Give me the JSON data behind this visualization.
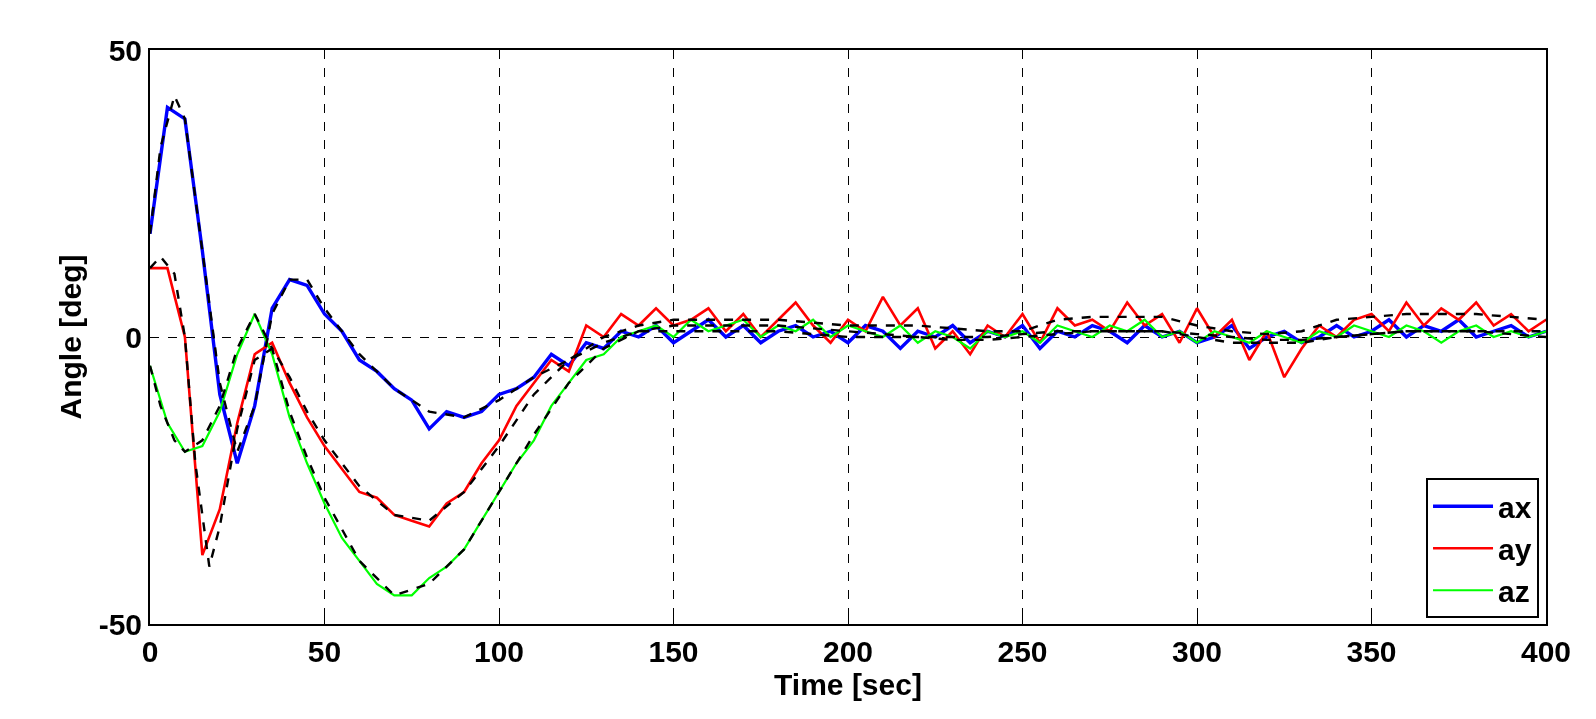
{
  "chart_data": {
    "type": "line",
    "xlabel": "Time [sec]",
    "ylabel": "Angle [deg]",
    "xlim": [
      0,
      400
    ],
    "xticks": [
      0,
      50,
      100,
      150,
      200,
      250,
      300,
      350,
      400
    ],
    "ylim": [
      -50,
      50
    ],
    "yticks": [
      -50,
      0,
      50
    ],
    "grid": true,
    "legend": "bottom right",
    "x": [
      0,
      5,
      10,
      15,
      20,
      25,
      30,
      35,
      40,
      45,
      50,
      55,
      60,
      65,
      70,
      75,
      80,
      85,
      90,
      95,
      100,
      105,
      110,
      115,
      120,
      125,
      130,
      135,
      140,
      145,
      150,
      155,
      160,
      165,
      170,
      175,
      180,
      185,
      190,
      195,
      200,
      205,
      210,
      215,
      220,
      225,
      230,
      235,
      240,
      245,
      250,
      255,
      260,
      265,
      270,
      275,
      280,
      285,
      290,
      295,
      300,
      305,
      310,
      315,
      320,
      325,
      330,
      335,
      340,
      345,
      350,
      355,
      360,
      365,
      370,
      375,
      380,
      385,
      390,
      395,
      400
    ],
    "series": [
      {
        "name": "ax",
        "color": "#0000ff",
        "values": [
          18,
          40,
          38,
          15,
          -10,
          -22,
          -12,
          5,
          10,
          9,
          4,
          1,
          -4,
          -6,
          -9,
          -11,
          -16,
          -13,
          -14,
          -13,
          -10,
          -9,
          -7,
          -3,
          -5,
          -1,
          -2,
          1,
          0,
          2,
          -1,
          1,
          3,
          0,
          2,
          -1,
          1,
          2,
          0,
          1,
          -1,
          2,
          1,
          -2,
          1,
          0,
          2,
          -1,
          1,
          0,
          2,
          -2,
          1,
          0,
          2,
          1,
          -1,
          2,
          0,
          1,
          -1,
          0,
          2,
          -2,
          0,
          1,
          -1,
          0,
          2,
          0,
          1,
          3,
          0,
          2,
          1,
          3,
          0,
          1,
          2,
          0,
          1
        ]
      },
      {
        "name": "ay",
        "color": "#ff0000",
        "values": [
          12,
          12,
          0,
          -38,
          -30,
          -15,
          -3,
          -1,
          -8,
          -14,
          -19,
          -23,
          -27,
          -28,
          -31,
          -32,
          -33,
          -29,
          -27,
          -22,
          -18,
          -12,
          -8,
          -4,
          -6,
          2,
          0,
          4,
          2,
          5,
          2,
          3,
          5,
          1,
          4,
          0,
          3,
          6,
          2,
          -1,
          3,
          1,
          7,
          2,
          5,
          -2,
          1,
          -3,
          2,
          0,
          4,
          -1,
          5,
          2,
          3,
          1,
          6,
          2,
          4,
          -1,
          5,
          0,
          3,
          -4,
          1,
          -7,
          -2,
          2,
          0,
          3,
          4,
          1,
          6,
          2,
          5,
          3,
          6,
          2,
          4,
          1,
          3
        ]
      },
      {
        "name": "az",
        "color": "#00ff00",
        "values": [
          -5,
          -15,
          -20,
          -19,
          -13,
          -3,
          4,
          -3,
          -14,
          -22,
          -29,
          -35,
          -39,
          -43,
          -45,
          -45,
          -42,
          -40,
          -37,
          -32,
          -27,
          -22,
          -18,
          -12,
          -8,
          -4,
          -3,
          0,
          1,
          2,
          0,
          3,
          1,
          2,
          3,
          0,
          2,
          1,
          3,
          0,
          2,
          1,
          0,
          2,
          -1,
          1,
          0,
          -2,
          1,
          0,
          1,
          -1,
          2,
          1,
          0,
          2,
          1,
          3,
          0,
          1,
          -1,
          1,
          0,
          -1,
          1,
          0,
          -1,
          1,
          0,
          2,
          1,
          0,
          2,
          1,
          -1,
          1,
          2,
          0,
          1,
          0,
          1
        ]
      },
      {
        "color": "#000000",
        "line_style": "dashed",
        "x": [
          0,
          3,
          7,
          10,
          15,
          20,
          25,
          30,
          35,
          40,
          45,
          50,
          60,
          70,
          80,
          90,
          100,
          110,
          120,
          130,
          140,
          150,
          160,
          170,
          180,
          190,
          200,
          210,
          220,
          230,
          240,
          250,
          260,
          270,
          280,
          290,
          300,
          310,
          320,
          330,
          340,
          350,
          360,
          370,
          380,
          390,
          400
        ],
        "values": [
          18,
          33,
          42,
          38,
          15,
          -8,
          -20,
          -12,
          4,
          10,
          10,
          5,
          -3,
          -9,
          -13,
          -14,
          -11,
          -7,
          -4,
          -1,
          1,
          1,
          1,
          1,
          1,
          0.5,
          0,
          0,
          0,
          0,
          0,
          0.5,
          1,
          1,
          1,
          1,
          0,
          -1,
          -1,
          -1,
          0,
          0.5,
          1,
          1,
          1,
          0.5,
          0
        ]
      },
      {
        "color": "#000000",
        "line_style": "dashed",
        "x": [
          0,
          3,
          7,
          10,
          13,
          17,
          20,
          25,
          30,
          35,
          40,
          45,
          50,
          60,
          70,
          80,
          90,
          100,
          110,
          120,
          130,
          140,
          150,
          160,
          170,
          180,
          190,
          200,
          210,
          220,
          230,
          240,
          250,
          260,
          270,
          280,
          290,
          300,
          310,
          320,
          330,
          340,
          350,
          360,
          370,
          380,
          390,
          400
        ],
        "values": [
          12,
          14,
          11,
          0,
          -22,
          -40,
          -33,
          -16,
          -4,
          -2,
          -7,
          -13,
          -18,
          -26,
          -31,
          -32,
          -27,
          -19,
          -10,
          -4,
          0,
          2,
          3,
          3,
          3,
          3,
          2.5,
          2,
          2,
          2,
          1.5,
          1,
          1,
          3,
          3.5,
          3.5,
          3.5,
          2,
          1,
          0.5,
          1,
          3,
          3.5,
          4,
          4,
          4,
          3.5,
          3
        ]
      },
      {
        "color": "#000000",
        "line_style": "dashed",
        "x": [
          0,
          3,
          7,
          10,
          15,
          20,
          25,
          30,
          35,
          40,
          45,
          50,
          60,
          70,
          80,
          90,
          100,
          110,
          120,
          130,
          140,
          150,
          160,
          170,
          180,
          190,
          200,
          210,
          220,
          230,
          240,
          250,
          260,
          270,
          280,
          290,
          300,
          310,
          320,
          330,
          340,
          350,
          360,
          370,
          380,
          390,
          400
        ],
        "values": [
          -5,
          -12,
          -18,
          -20,
          -18,
          -12,
          -2,
          4,
          -2,
          -13,
          -21,
          -28,
          -39,
          -45,
          -43,
          -37,
          -27,
          -17,
          -8,
          -2,
          1,
          2,
          2,
          2,
          2,
          1.5,
          1,
          0.5,
          0,
          -0.5,
          -0.5,
          0,
          0.5,
          1,
          1,
          1,
          0.5,
          0,
          -0.5,
          -0.5,
          0,
          0.5,
          1,
          1,
          1,
          1,
          1
        ]
      }
    ]
  }
}
